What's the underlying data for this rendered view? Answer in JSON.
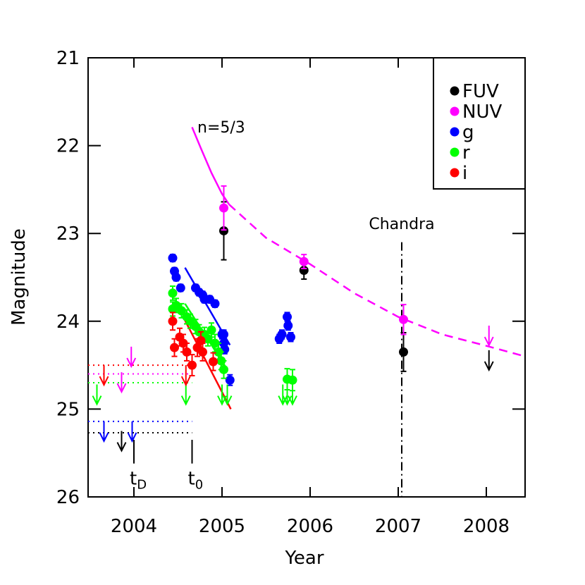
{
  "chart_data": {
    "type": "scatter",
    "x_label": "Year",
    "y_label": "Magnitude",
    "xlim": [
      2003.48,
      2008.44
    ],
    "xticks": [
      2004,
      2005,
      2006,
      2007,
      2008
    ],
    "ylim": [
      26,
      21
    ],
    "yticks": [
      21,
      22,
      23,
      24,
      25,
      26
    ],
    "legend": "upper right",
    "series": [
      {
        "name": "FUV",
        "color": "#000000",
        "x": [
          2005.02,
          2005.93,
          2007.06
        ],
        "values": [
          22.97,
          23.42,
          24.35
        ],
        "errors": [
          0.33,
          0.1,
          0.22
        ],
        "upper_limits": {
          "x": [
            2003.86,
            2008.03
          ],
          "values": [
            25.25,
            24.33
          ]
        },
        "limit_level": 25.27
      },
      {
        "name": "NUV",
        "color": "#ff00ff",
        "x": [
          2005.02,
          2005.93,
          2007.06
        ],
        "values": [
          22.71,
          23.32,
          23.98
        ],
        "errors": [
          0.25,
          0.08,
          0.17
        ],
        "upper_limits": {
          "x": [
            2003.97,
            2003.86,
            2008.03
          ],
          "values": [
            24.29,
            24.58,
            24.05
          ]
        },
        "limit_level": 24.6
      },
      {
        "name": "g",
        "color": "#0000ff",
        "x": [
          2004.44,
          2004.46,
          2004.48,
          2004.53,
          2004.7,
          2004.74,
          2004.78,
          2004.8,
          2004.86,
          2004.92,
          2005.0,
          2005.02,
          2005.02,
          2005.03,
          2005.09,
          2005.65,
          2005.68,
          2005.74,
          2005.75,
          2005.78
        ],
        "values": [
          23.28,
          23.43,
          23.5,
          23.62,
          23.62,
          23.67,
          23.7,
          23.75,
          23.75,
          23.8,
          24.15,
          24.15,
          24.25,
          24.32,
          24.67,
          24.2,
          24.15,
          23.95,
          24.05,
          24.18
        ],
        "errors": [
          0.04,
          0.04,
          0.04,
          0.04,
          0.04,
          0.04,
          0.04,
          0.04,
          0.04,
          0.04,
          0.05,
          0.05,
          0.05,
          0.05,
          0.06,
          0.05,
          0.05,
          0.05,
          0.05,
          0.05
        ],
        "upper_limits": {
          "x": [
            2003.66,
            2003.98
          ],
          "values": [
            25.14,
            25.14
          ]
        },
        "limit_level": 25.14
      },
      {
        "name": "r",
        "color": "#00ff00",
        "x": [
          2004.44,
          2004.44,
          2004.48,
          2004.54,
          2004.6,
          2004.64,
          2004.7,
          2004.74,
          2004.8,
          2004.84,
          2004.88,
          2004.92,
          2004.96,
          2004.99,
          2005.02,
          2005.74,
          2005.8
        ],
        "values": [
          23.68,
          23.86,
          23.82,
          23.88,
          23.95,
          24.0,
          24.06,
          24.12,
          24.15,
          24.2,
          24.1,
          24.25,
          24.35,
          24.45,
          24.55,
          24.66,
          24.67
        ],
        "errors": [
          0.08,
          0.08,
          0.08,
          0.08,
          0.08,
          0.08,
          0.08,
          0.08,
          0.08,
          0.08,
          0.08,
          0.1,
          0.1,
          0.1,
          0.1,
          0.12,
          0.12
        ],
        "upper_limits": {
          "x": [
            2003.58,
            2004.59,
            2005.0,
            2005.06,
            2005.69,
            2005.74,
            2005.8
          ],
          "values": [
            24.72,
            24.72,
            24.72,
            24.72,
            24.72,
            24.72,
            24.72
          ]
        },
        "limit_level": 24.7
      },
      {
        "name": "i",
        "color": "#ff0000",
        "x": [
          2004.44,
          2004.46,
          2004.52,
          2004.56,
          2004.6,
          2004.66,
          2004.72,
          2004.76,
          2004.78,
          2004.9
        ],
        "values": [
          24.0,
          24.3,
          24.18,
          24.25,
          24.35,
          24.5,
          24.3,
          24.22,
          24.35,
          24.46
        ],
        "errors": [
          0.1,
          0.1,
          0.1,
          0.1,
          0.1,
          0.12,
          0.1,
          0.1,
          0.1,
          0.1
        ],
        "upper_limits": {
          "x": [
            2003.66,
            2004.59
          ],
          "values": [
            24.5,
            24.5
          ]
        },
        "limit_level": 24.5
      }
    ],
    "fits": [
      {
        "color": "#ff00ff",
        "dash": "solid",
        "x": [
          2004.66,
          2004.76,
          2004.88,
          2005.0,
          2005.08
        ],
        "values": [
          21.79,
          22.03,
          22.31,
          22.55,
          22.67
        ]
      },
      {
        "color": "#ff00ff",
        "dash": "dashed",
        "x": [
          2005.08,
          2005.5,
          2006.0,
          2006.5,
          2007.0,
          2007.5,
          2008.0,
          2008.44
        ],
        "values": [
          22.67,
          23.05,
          23.35,
          23.68,
          23.95,
          24.15,
          24.28,
          24.4
        ]
      },
      {
        "color": "#0000ff",
        "dash": "solid",
        "x": [
          2004.58,
          2005.09
        ],
        "values": [
          23.39,
          24.27
        ]
      },
      {
        "color": "#00ff00",
        "dash": "solid",
        "x": [
          2004.58,
          2005.06
        ],
        "values": [
          23.8,
          24.55
        ]
      },
      {
        "color": "#ff0000",
        "dash": "solid",
        "x": [
          2004.58,
          2005.1
        ],
        "values": [
          23.99,
          25.0
        ]
      }
    ],
    "annotations": [
      {
        "text": "n=5/3",
        "x": 2004.72,
        "y": 21.85
      },
      {
        "text": "Chandra",
        "x": 2007.04,
        "y": 22.95
      }
    ],
    "chandra_line": {
      "x": 2007.04,
      "y": 23.1
    },
    "epochs": [
      {
        "text": "t",
        "sub": "D",
        "x": 2004.0,
        "y": [
          25.35,
          25.62
        ]
      },
      {
        "text": "t",
        "sub": "0",
        "x": 2004.66,
        "y": [
          25.35,
          25.62
        ]
      }
    ]
  }
}
